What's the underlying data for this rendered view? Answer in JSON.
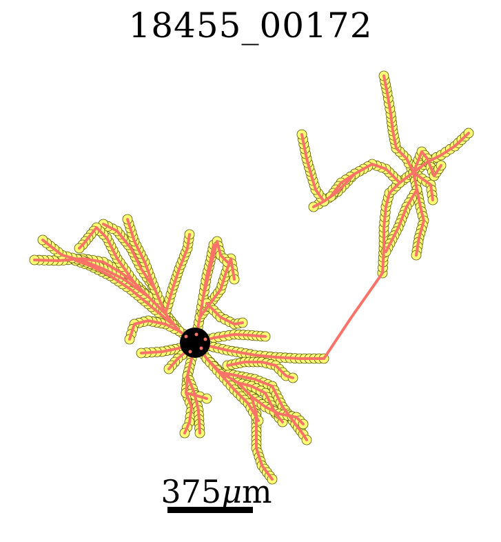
{
  "title": "18455_00172",
  "scale_bar": {
    "value": "375",
    "unit_mu": "μ",
    "unit_m": "m"
  },
  "colors": {
    "node_fill": "#ffff77",
    "node_edge": "#555500",
    "branch": "#fa7268",
    "soma": "#000000"
  }
}
